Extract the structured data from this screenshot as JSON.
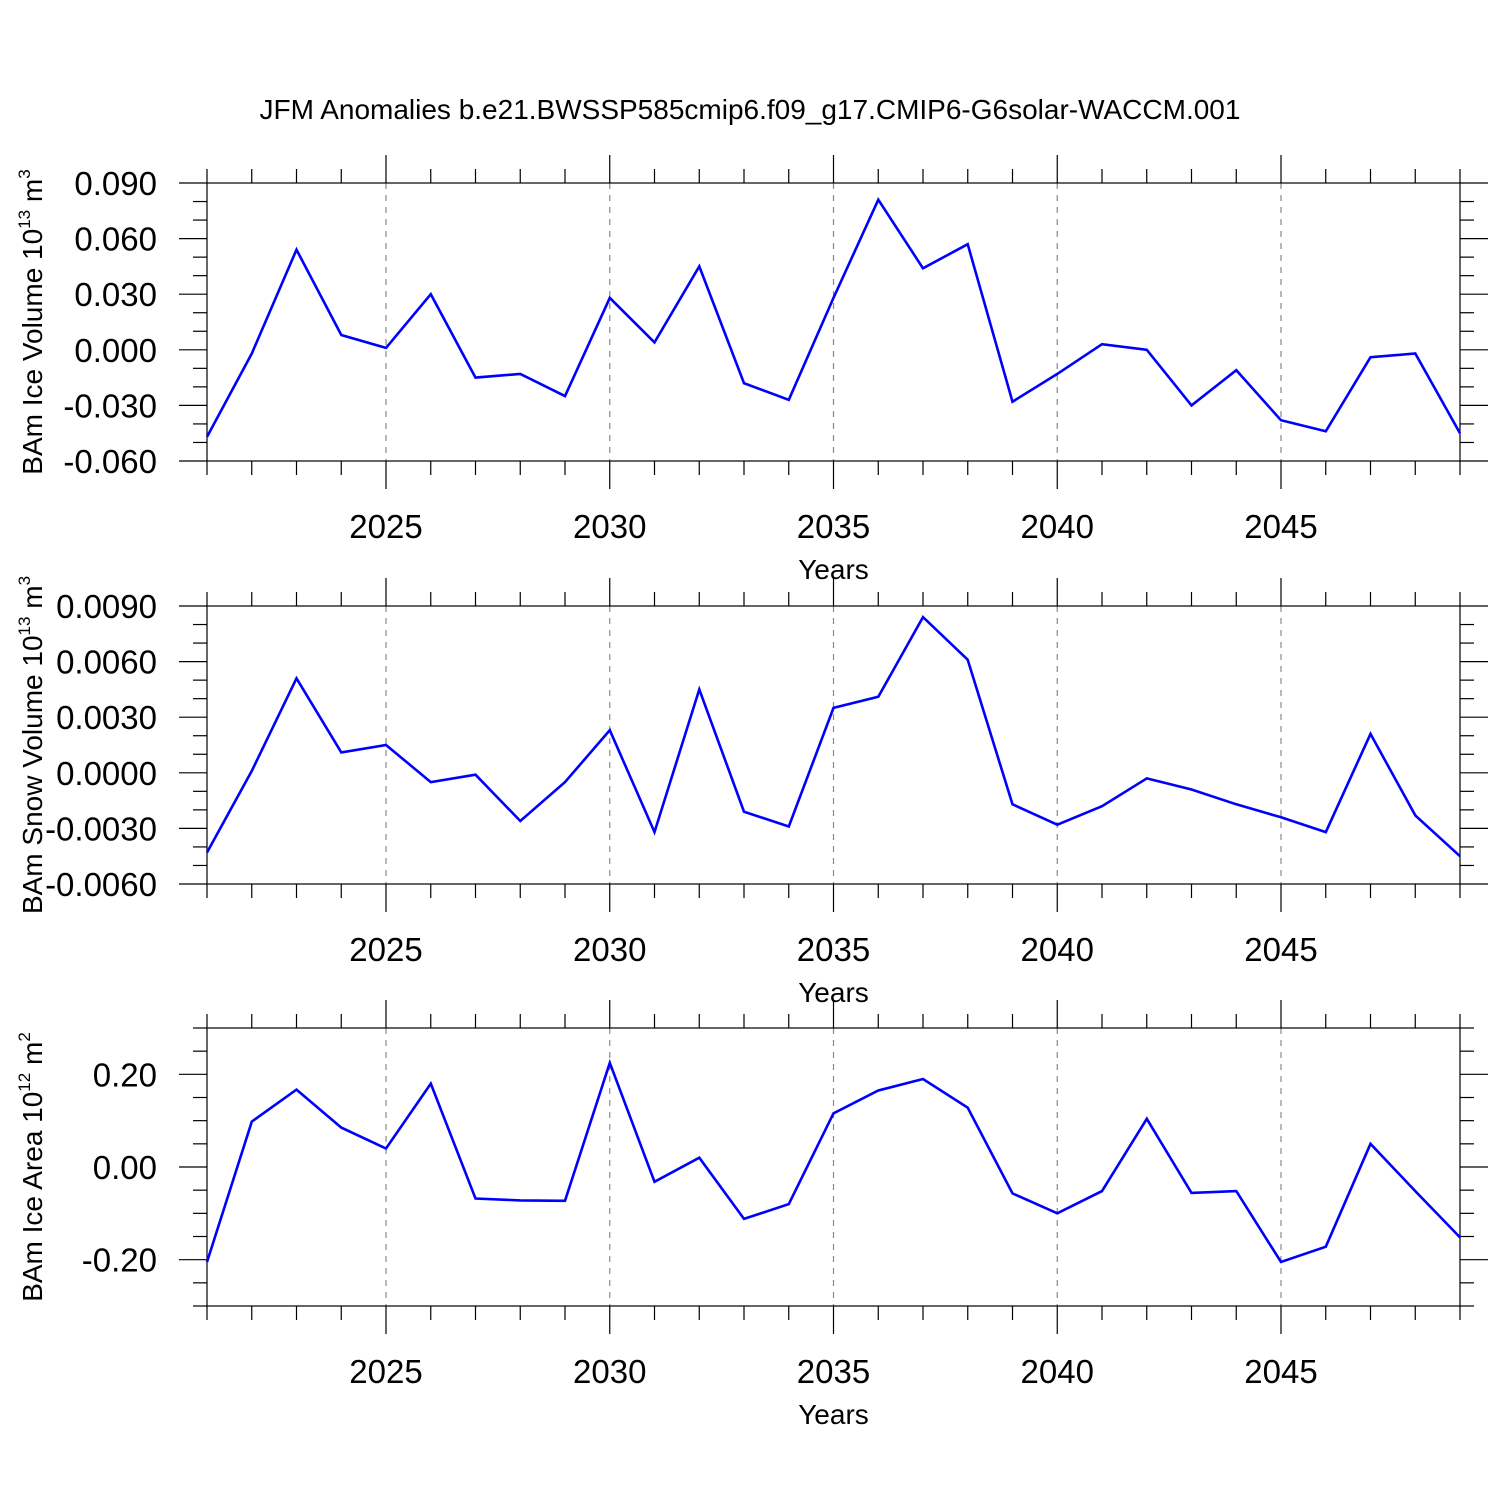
{
  "title": "JFM Anomalies b.e21.BWSSP585cmip6.f09_g17.CMIP6-G6solar-WACCM.001",
  "colors": {
    "line": "#0000ff",
    "frame": "#000000",
    "grid": "#888888"
  },
  "chart_data": [
    {
      "type": "line",
      "title": "JFM Anomalies b.e21.BWSSP585cmip6.f09_g17.CMIP6-G6solar-WACCM.001",
      "xlabel": "Years",
      "ylabel": "BAm Ice Volume 10",
      "ylabel_exp": "13",
      "ylabel_unit": " m",
      "ylabel_unit_exp": "3",
      "xlim": [
        2021,
        2049
      ],
      "ylim": [
        -0.06,
        0.09
      ],
      "yticks": [
        -0.06,
        -0.03,
        0.0,
        0.03,
        0.06,
        0.09
      ],
      "ytick_labels": [
        "-0.060",
        "-0.030",
        "0.000",
        "0.030",
        "0.060",
        "0.090"
      ],
      "yminor_step": 0.01,
      "xticks": [
        2025,
        2030,
        2035,
        2040,
        2045
      ],
      "xtick_labels": [
        "2025",
        "2030",
        "2035",
        "2040",
        "2045"
      ],
      "x": [
        2021,
        2022,
        2023,
        2024,
        2025,
        2026,
        2027,
        2028,
        2029,
        2030,
        2031,
        2032,
        2033,
        2034,
        2035,
        2036,
        2037,
        2038,
        2039,
        2040,
        2041,
        2042,
        2043,
        2044,
        2045,
        2046,
        2047,
        2048,
        2049
      ],
      "values": [
        -0.047,
        -0.002,
        0.054,
        0.008,
        0.001,
        0.03,
        -0.015,
        -0.013,
        -0.025,
        0.028,
        0.004,
        0.045,
        -0.018,
        -0.027,
        0.028,
        0.081,
        0.044,
        0.057,
        -0.028,
        -0.013,
        0.003,
        0.0,
        -0.03,
        -0.011,
        -0.038,
        -0.044,
        -0.004,
        -0.002,
        -0.045
      ]
    },
    {
      "type": "line",
      "xlabel": "Years",
      "ylabel": "BAm Snow Volume 10",
      "ylabel_exp": "13",
      "ylabel_unit": " m",
      "ylabel_unit_exp": "3",
      "xlim": [
        2021,
        2049
      ],
      "ylim": [
        -0.006,
        0.009
      ],
      "yticks": [
        -0.006,
        -0.003,
        0.0,
        0.003,
        0.006,
        0.009
      ],
      "ytick_labels": [
        "-0.0060",
        "-0.0030",
        "0.0000",
        "0.0030",
        "0.0060",
        "0.0090"
      ],
      "yminor_step": 0.001,
      "xticks": [
        2025,
        2030,
        2035,
        2040,
        2045
      ],
      "xtick_labels": [
        "2025",
        "2030",
        "2035",
        "2040",
        "2045"
      ],
      "x": [
        2021,
        2022,
        2023,
        2024,
        2025,
        2026,
        2027,
        2028,
        2029,
        2030,
        2031,
        2032,
        2033,
        2034,
        2035,
        2036,
        2037,
        2038,
        2039,
        2040,
        2041,
        2042,
        2043,
        2044,
        2045,
        2046,
        2047,
        2048,
        2049
      ],
      "values": [
        -0.0043,
        0.0001,
        0.0051,
        0.0011,
        0.0015,
        -0.0005,
        -0.0001,
        -0.0026,
        -0.0005,
        0.0023,
        -0.0032,
        0.0045,
        -0.0021,
        -0.0029,
        0.0035,
        0.0041,
        0.0084,
        0.0061,
        -0.0017,
        -0.0028,
        -0.0018,
        -0.0003,
        -0.0009,
        -0.0017,
        -0.0024,
        -0.0032,
        0.0021,
        -0.0023,
        -0.0045
      ]
    },
    {
      "type": "line",
      "xlabel": "Years",
      "ylabel": "BAm Ice Area 10",
      "ylabel_exp": "12",
      "ylabel_unit": " m",
      "ylabel_unit_exp": "2",
      "xlim": [
        2021,
        2049
      ],
      "ylim": [
        -0.3,
        0.3
      ],
      "yticks": [
        -0.2,
        0.0,
        0.2
      ],
      "ytick_labels": [
        "-0.20",
        "0.00",
        "0.20"
      ],
      "yminor_step": 0.05,
      "xticks": [
        2025,
        2030,
        2035,
        2040,
        2045
      ],
      "xtick_labels": [
        "2025",
        "2030",
        "2035",
        "2040",
        "2045"
      ],
      "x": [
        2021,
        2022,
        2023,
        2024,
        2025,
        2026,
        2027,
        2028,
        2029,
        2030,
        2031,
        2032,
        2033,
        2034,
        2035,
        2036,
        2037,
        2038,
        2039,
        2040,
        2041,
        2042,
        2043,
        2044,
        2045,
        2046,
        2047,
        2048,
        2049
      ],
      "values": [
        -0.205,
        0.098,
        0.167,
        0.085,
        0.04,
        0.18,
        -0.068,
        -0.072,
        -0.073,
        0.225,
        -0.032,
        0.02,
        -0.112,
        -0.08,
        0.116,
        0.165,
        0.19,
        0.128,
        -0.057,
        -0.1,
        -0.052,
        0.104,
        -0.056,
        -0.052,
        -0.205,
        -0.172,
        0.05,
        -0.052,
        -0.152
      ]
    }
  ]
}
